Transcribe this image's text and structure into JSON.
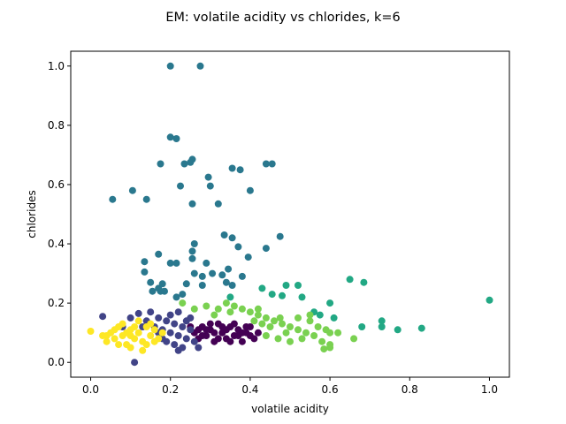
{
  "chart_data": {
    "type": "scatter",
    "title": "EM: volatile acidity vs chlorides, k=6",
    "xlabel": "volatile acidity",
    "ylabel": "chlorides",
    "xlim": [
      -0.05,
      1.05
    ],
    "ylim": [
      -0.05,
      1.05
    ],
    "xticks": [
      "0.0",
      "0.2",
      "0.4",
      "0.6",
      "0.8",
      "1.0"
    ],
    "yticks": [
      "0.0",
      "0.2",
      "0.4",
      "0.6",
      "0.8",
      "1.0"
    ],
    "grid": false,
    "legend": false,
    "series": [
      {
        "color": "#440154",
        "points": [
          [
            0.26,
            0.1
          ],
          [
            0.27,
            0.08
          ],
          [
            0.28,
            0.12
          ],
          [
            0.29,
            0.09
          ],
          [
            0.3,
            0.11
          ],
          [
            0.31,
            0.07
          ],
          [
            0.32,
            0.13
          ],
          [
            0.33,
            0.1
          ],
          [
            0.34,
            0.08
          ],
          [
            0.35,
            0.12
          ],
          [
            0.36,
            0.09
          ],
          [
            0.37,
            0.11
          ],
          [
            0.38,
            0.07
          ],
          [
            0.39,
            0.1
          ],
          [
            0.4,
            0.12
          ],
          [
            0.41,
            0.08
          ],
          [
            0.28,
            0.09
          ],
          [
            0.3,
            0.13
          ],
          [
            0.32,
            0.08
          ],
          [
            0.34,
            0.11
          ],
          [
            0.36,
            0.13
          ],
          [
            0.38,
            0.1
          ],
          [
            0.31,
            0.1
          ],
          [
            0.33,
            0.12
          ],
          [
            0.35,
            0.07
          ],
          [
            0.37,
            0.09
          ],
          [
            0.29,
            0.11
          ],
          [
            0.39,
            0.12
          ],
          [
            0.27,
            0.11
          ],
          [
            0.4,
            0.09
          ],
          [
            0.25,
            0.12
          ],
          [
            0.42,
            0.1
          ]
        ]
      },
      {
        "color": "#414487",
        "points": [
          [
            0.03,
            0.155
          ],
          [
            0.08,
            0.12
          ],
          [
            0.1,
            0.15
          ],
          [
            0.12,
            0.165
          ],
          [
            0.14,
            0.14
          ],
          [
            0.15,
            0.17
          ],
          [
            0.16,
            0.12
          ],
          [
            0.17,
            0.15
          ],
          [
            0.18,
            0.11
          ],
          [
            0.19,
            0.14
          ],
          [
            0.2,
            0.1
          ],
          [
            0.21,
            0.13
          ],
          [
            0.22,
            0.09
          ],
          [
            0.23,
            0.12
          ],
          [
            0.24,
            0.08
          ],
          [
            0.25,
            0.11
          ],
          [
            0.26,
            0.07
          ],
          [
            0.27,
            0.05
          ],
          [
            0.21,
            0.06
          ],
          [
            0.18,
            0.08
          ],
          [
            0.2,
            0.16
          ],
          [
            0.22,
            0.17
          ],
          [
            0.19,
            0.07
          ],
          [
            0.23,
            0.05
          ],
          [
            0.25,
            0.15
          ],
          [
            0.17,
            0.1
          ],
          [
            0.24,
            0.14
          ],
          [
            0.13,
            0.12
          ],
          [
            0.11,
            0.0
          ],
          [
            0.22,
            0.04
          ]
        ]
      },
      {
        "color": "#2a788e",
        "points": [
          [
            0.2,
            1.0
          ],
          [
            0.275,
            1.0
          ],
          [
            0.2,
            0.76
          ],
          [
            0.215,
            0.755
          ],
          [
            0.055,
            0.55
          ],
          [
            0.105,
            0.58
          ],
          [
            0.14,
            0.55
          ],
          [
            0.175,
            0.67
          ],
          [
            0.235,
            0.67
          ],
          [
            0.25,
            0.675
          ],
          [
            0.255,
            0.685
          ],
          [
            0.295,
            0.625
          ],
          [
            0.3,
            0.595
          ],
          [
            0.225,
            0.595
          ],
          [
            0.255,
            0.535
          ],
          [
            0.32,
            0.535
          ],
          [
            0.355,
            0.655
          ],
          [
            0.375,
            0.65
          ],
          [
            0.4,
            0.58
          ],
          [
            0.44,
            0.67
          ],
          [
            0.455,
            0.67
          ],
          [
            0.475,
            0.425
          ],
          [
            0.335,
            0.43
          ],
          [
            0.355,
            0.42
          ],
          [
            0.37,
            0.39
          ],
          [
            0.26,
            0.4
          ],
          [
            0.255,
            0.375
          ],
          [
            0.255,
            0.35
          ],
          [
            0.29,
            0.335
          ],
          [
            0.2,
            0.335
          ],
          [
            0.215,
            0.335
          ],
          [
            0.17,
            0.365
          ],
          [
            0.135,
            0.34
          ],
          [
            0.135,
            0.305
          ],
          [
            0.44,
            0.385
          ],
          [
            0.395,
            0.355
          ],
          [
            0.345,
            0.315
          ],
          [
            0.33,
            0.295
          ],
          [
            0.305,
            0.3
          ],
          [
            0.28,
            0.29
          ],
          [
            0.26,
            0.3
          ],
          [
            0.24,
            0.265
          ],
          [
            0.15,
            0.27
          ],
          [
            0.17,
            0.25
          ],
          [
            0.18,
            0.265
          ],
          [
            0.155,
            0.24
          ],
          [
            0.175,
            0.24
          ],
          [
            0.185,
            0.24
          ],
          [
            0.215,
            0.22
          ],
          [
            0.23,
            0.23
          ],
          [
            0.28,
            0.26
          ],
          [
            0.34,
            0.27
          ],
          [
            0.355,
            0.26
          ],
          [
            0.38,
            0.29
          ]
        ]
      },
      {
        "color": "#22a884",
        "points": [
          [
            0.65,
            0.28
          ],
          [
            0.685,
            0.27
          ],
          [
            0.6,
            0.2
          ],
          [
            0.53,
            0.22
          ],
          [
            0.48,
            0.225
          ],
          [
            0.49,
            0.26
          ],
          [
            0.52,
            0.26
          ],
          [
            0.43,
            0.25
          ],
          [
            0.455,
            0.23
          ],
          [
            0.56,
            0.17
          ],
          [
            0.575,
            0.16
          ],
          [
            0.61,
            0.15
          ],
          [
            0.68,
            0.12
          ],
          [
            0.73,
            0.14
          ],
          [
            0.73,
            0.12
          ],
          [
            0.77,
            0.11
          ],
          [
            0.83,
            0.115
          ],
          [
            1.0,
            0.21
          ],
          [
            0.35,
            0.22
          ]
        ]
      },
      {
        "color": "#7ad151",
        "points": [
          [
            0.23,
            0.2
          ],
          [
            0.26,
            0.18
          ],
          [
            0.29,
            0.19
          ],
          [
            0.32,
            0.18
          ],
          [
            0.35,
            0.17
          ],
          [
            0.38,
            0.18
          ],
          [
            0.4,
            0.17
          ],
          [
            0.42,
            0.16
          ],
          [
            0.44,
            0.15
          ],
          [
            0.46,
            0.14
          ],
          [
            0.48,
            0.13
          ],
          [
            0.5,
            0.12
          ],
          [
            0.52,
            0.11
          ],
          [
            0.54,
            0.1
          ],
          [
            0.56,
            0.09
          ],
          [
            0.58,
            0.07
          ],
          [
            0.6,
            0.06
          ],
          [
            0.62,
            0.1
          ],
          [
            0.57,
            0.12
          ],
          [
            0.53,
            0.08
          ],
          [
            0.49,
            0.1
          ],
          [
            0.45,
            0.12
          ],
          [
            0.47,
            0.08
          ],
          [
            0.43,
            0.13
          ],
          [
            0.41,
            0.14
          ],
          [
            0.55,
            0.14
          ],
          [
            0.59,
            0.11
          ],
          [
            0.5,
            0.07
          ],
          [
            0.44,
            0.09
          ],
          [
            0.52,
            0.15
          ],
          [
            0.36,
            0.19
          ],
          [
            0.34,
            0.2
          ],
          [
            0.31,
            0.16
          ],
          [
            0.42,
            0.18
          ],
          [
            0.6,
            0.1
          ],
          [
            0.6,
            0.05
          ],
          [
            0.66,
            0.08
          ],
          [
            0.585,
            0.045
          ],
          [
            0.55,
            0.16
          ],
          [
            0.475,
            0.15
          ]
        ]
      },
      {
        "color": "#fde725",
        "points": [
          [
            0.0,
            0.105
          ],
          [
            0.03,
            0.09
          ],
          [
            0.04,
            0.07
          ],
          [
            0.05,
            0.1
          ],
          [
            0.06,
            0.08
          ],
          [
            0.07,
            0.12
          ],
          [
            0.08,
            0.09
          ],
          [
            0.09,
            0.06
          ],
          [
            0.1,
            0.11
          ],
          [
            0.11,
            0.08
          ],
          [
            0.12,
            0.1
          ],
          [
            0.13,
            0.07
          ],
          [
            0.14,
            0.12
          ],
          [
            0.15,
            0.09
          ],
          [
            0.16,
            0.11
          ],
          [
            0.17,
            0.08
          ],
          [
            0.18,
            0.1
          ],
          [
            0.08,
            0.13
          ],
          [
            0.1,
            0.05
          ],
          [
            0.12,
            0.14
          ],
          [
            0.13,
            0.04
          ],
          [
            0.06,
            0.11
          ],
          [
            0.04,
            0.09
          ],
          [
            0.11,
            0.12
          ],
          [
            0.14,
            0.06
          ],
          [
            0.09,
            0.1
          ],
          [
            0.15,
            0.13
          ],
          [
            0.07,
            0.06
          ],
          [
            0.16,
            0.07
          ],
          [
            0.1,
            0.09
          ]
        ]
      }
    ]
  }
}
